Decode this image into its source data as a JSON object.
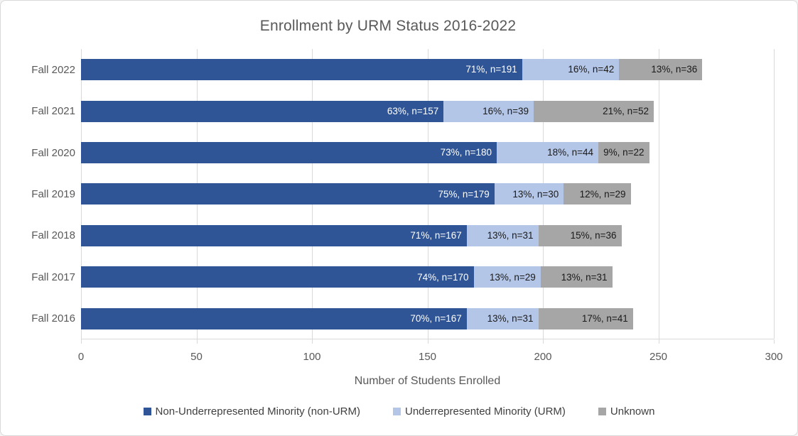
{
  "chart_data": {
    "type": "bar",
    "orientation": "horizontal",
    "stacked": true,
    "title": "Enrollment by URM Status 2016-2022",
    "xlabel": "Number of Students Enrolled",
    "ylabel": "",
    "xlim": [
      0,
      300
    ],
    "xticks": [
      0,
      50,
      100,
      150,
      200,
      250,
      300
    ],
    "grid": true,
    "legend_position": "bottom",
    "categories": [
      "Fall 2022",
      "Fall 2021",
      "Fall 2020",
      "Fall 2019",
      "Fall 2018",
      "Fall 2017",
      "Fall 2016"
    ],
    "series": [
      {
        "key": "non-urm",
        "name": "Non-Underrepresented Minority (non-URM)",
        "color": "#2F5596",
        "label_color": "#FFFFFF",
        "values": [
          191,
          157,
          180,
          179,
          167,
          170,
          167
        ],
        "percents": [
          71,
          63,
          73,
          75,
          71,
          74,
          70
        ],
        "labels": [
          "71%, n=191",
          "63%, n=157",
          "73%, n=180",
          "75%, n=179",
          "71%, n=167",
          "74%, n=170",
          "70%, n=167"
        ]
      },
      {
        "key": "urm",
        "name": "Underrepresented Minority (URM)",
        "color": "#B4C6E7",
        "label_color": "#1A1A1A",
        "values": [
          42,
          39,
          44,
          30,
          31,
          29,
          31
        ],
        "percents": [
          16,
          16,
          18,
          13,
          13,
          13,
          13
        ],
        "labels": [
          "16%, n=42",
          "16%, n=39",
          "18%, n=44",
          "13%, n=30",
          "13%, n=31",
          "13%, n=29",
          "13%, n=31"
        ]
      },
      {
        "key": "unknown",
        "name": "Unknown",
        "color": "#A6A6A6",
        "label_color": "#1A1A1A",
        "values": [
          36,
          52,
          22,
          29,
          36,
          31,
          41
        ],
        "percents": [
          13,
          21,
          9,
          12,
          15,
          13,
          17
        ],
        "labels": [
          "13%, n=36",
          "21%, n=52",
          "9%, n=22",
          "12%, n=29",
          "15%, n=36",
          "13%, n=31",
          "17%, n=41"
        ]
      }
    ]
  },
  "colors": {
    "background": "#FFFFFF",
    "border": "#D9D9D9",
    "gridline": "#D9D9D9",
    "axis_text": "#595959",
    "title_text": "#595959",
    "legend_text": "#404040"
  }
}
